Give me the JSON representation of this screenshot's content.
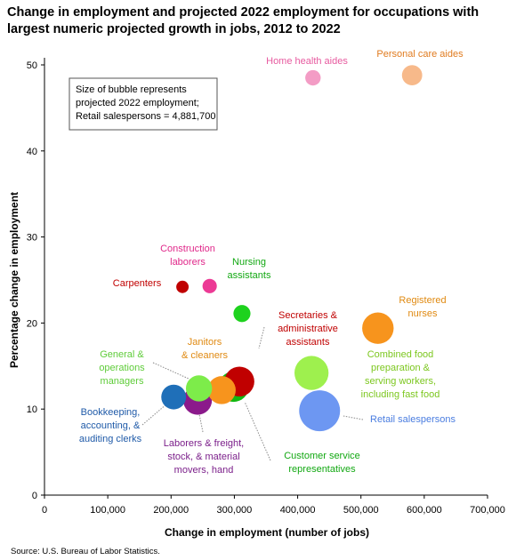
{
  "chart_data": {
    "type": "scatter",
    "title_lines": [
      "Change in employment and projected 2022 employment for occupations with",
      "largest numeric projected growth in jobs, 2012 to 2022"
    ],
    "xlabel": "Change in employment (number of jobs)",
    "ylabel": "Percentage change in employment",
    "xlim": [
      0,
      700000
    ],
    "ylim": [
      0,
      50
    ],
    "x_ticks": [
      0,
      100000,
      200000,
      300000,
      400000,
      500000,
      600000,
      700000
    ],
    "x_tick_labels": [
      "0",
      "100,000",
      "200,000",
      "300,000",
      "400,000",
      "500,000",
      "600,000",
      "700,000"
    ],
    "y_ticks": [
      0,
      10,
      20,
      30,
      40,
      50
    ],
    "y_tick_labels": [
      "0",
      "10",
      "20",
      "30",
      "40",
      "50"
    ],
    "note_lines": [
      "Size of bubble represents",
      "projected 2022 employment;",
      "Retail salespersons = 4,881,700"
    ],
    "source": "Source: U.S. Bureau of Labor Statistics.",
    "points": [
      {
        "label_lines": [
          "Personal care aides"
        ],
        "x": 580800,
        "y": 48.8,
        "size": 1.2,
        "color": "#f7b98a",
        "label_color": "#e07b1f"
      },
      {
        "label_lines": [
          "Home health aides"
        ],
        "x": 424200,
        "y": 48.5,
        "size": 0.7,
        "color": "#f39cc5",
        "label_color": "#e75a9f"
      },
      {
        "label_lines": [
          "Construction",
          "laborers"
        ],
        "x": 261000,
        "y": 24.3,
        "size": 0.6,
        "color": "#ec3a95",
        "label_color": "#e0288a"
      },
      {
        "label_lines": [
          "Carpenters"
        ],
        "x": 218000,
        "y": 24.2,
        "size": 0.45,
        "color": "#c00000",
        "label_color": "#c00000"
      },
      {
        "label_lines": [
          "Nursing",
          "assistants"
        ],
        "x": 312000,
        "y": 21.1,
        "size": 0.85,
        "color": "#1ed21e",
        "label_color": "#12a812"
      },
      {
        "label_lines": [
          "Registered",
          "nurses"
        ],
        "x": 526800,
        "y": 19.4,
        "size": 2.9,
        "color": "#f7941d",
        "label_color": "#e08a12"
      },
      {
        "label_lines": [
          "Secretaries &",
          "administrative",
          "assistants"
        ],
        "x": 308000,
        "y": 13.2,
        "size": 2.6,
        "color": "#c00000",
        "label_color": "#c00000"
      },
      {
        "label_lines": [
          "Janitors",
          "& cleaners"
        ],
        "x": 280000,
        "y": 12.2,
        "size": 2.3,
        "color": "#f7941d",
        "label_color": "#e08a12"
      },
      {
        "label_lines": [
          "Combined food",
          "preparation &",
          "serving workers,",
          "including fast food"
        ],
        "x": 421900,
        "y": 14.2,
        "size": 3.4,
        "color": "#9ef04e",
        "label_color": "#7cc71f"
      },
      {
        "label_lines": [
          "Customer service",
          "representatives"
        ],
        "x": 298700,
        "y": 12.6,
        "size": 2.7,
        "color": "#12b812",
        "label_color": "#12a812"
      },
      {
        "label_lines": [
          "General &",
          "operations",
          "managers"
        ],
        "x": 244100,
        "y": 12.4,
        "size": 2.0,
        "color": "#7dec4a",
        "label_color": "#5fcc3a"
      },
      {
        "label_lines": [
          "Laborers & freight,",
          "stock, & material",
          "movers, hand"
        ],
        "x": 241900,
        "y": 11.0,
        "size": 2.4,
        "color": "#8b1a8b",
        "label_color": "#7b1f8a"
      },
      {
        "label_lines": [
          "Bookkeeping,",
          "accounting, &",
          "auditing clerks"
        ],
        "x": 204100,
        "y": 11.4,
        "size": 1.8,
        "color": "#1f6fb8",
        "label_color": "#1f5aa8"
      },
      {
        "label_lines": [
          "Retail salespersons"
        ],
        "x": 434700,
        "y": 9.8,
        "size": 4.9,
        "color": "#6d97f2",
        "label_color": "#4a7de0"
      }
    ]
  }
}
